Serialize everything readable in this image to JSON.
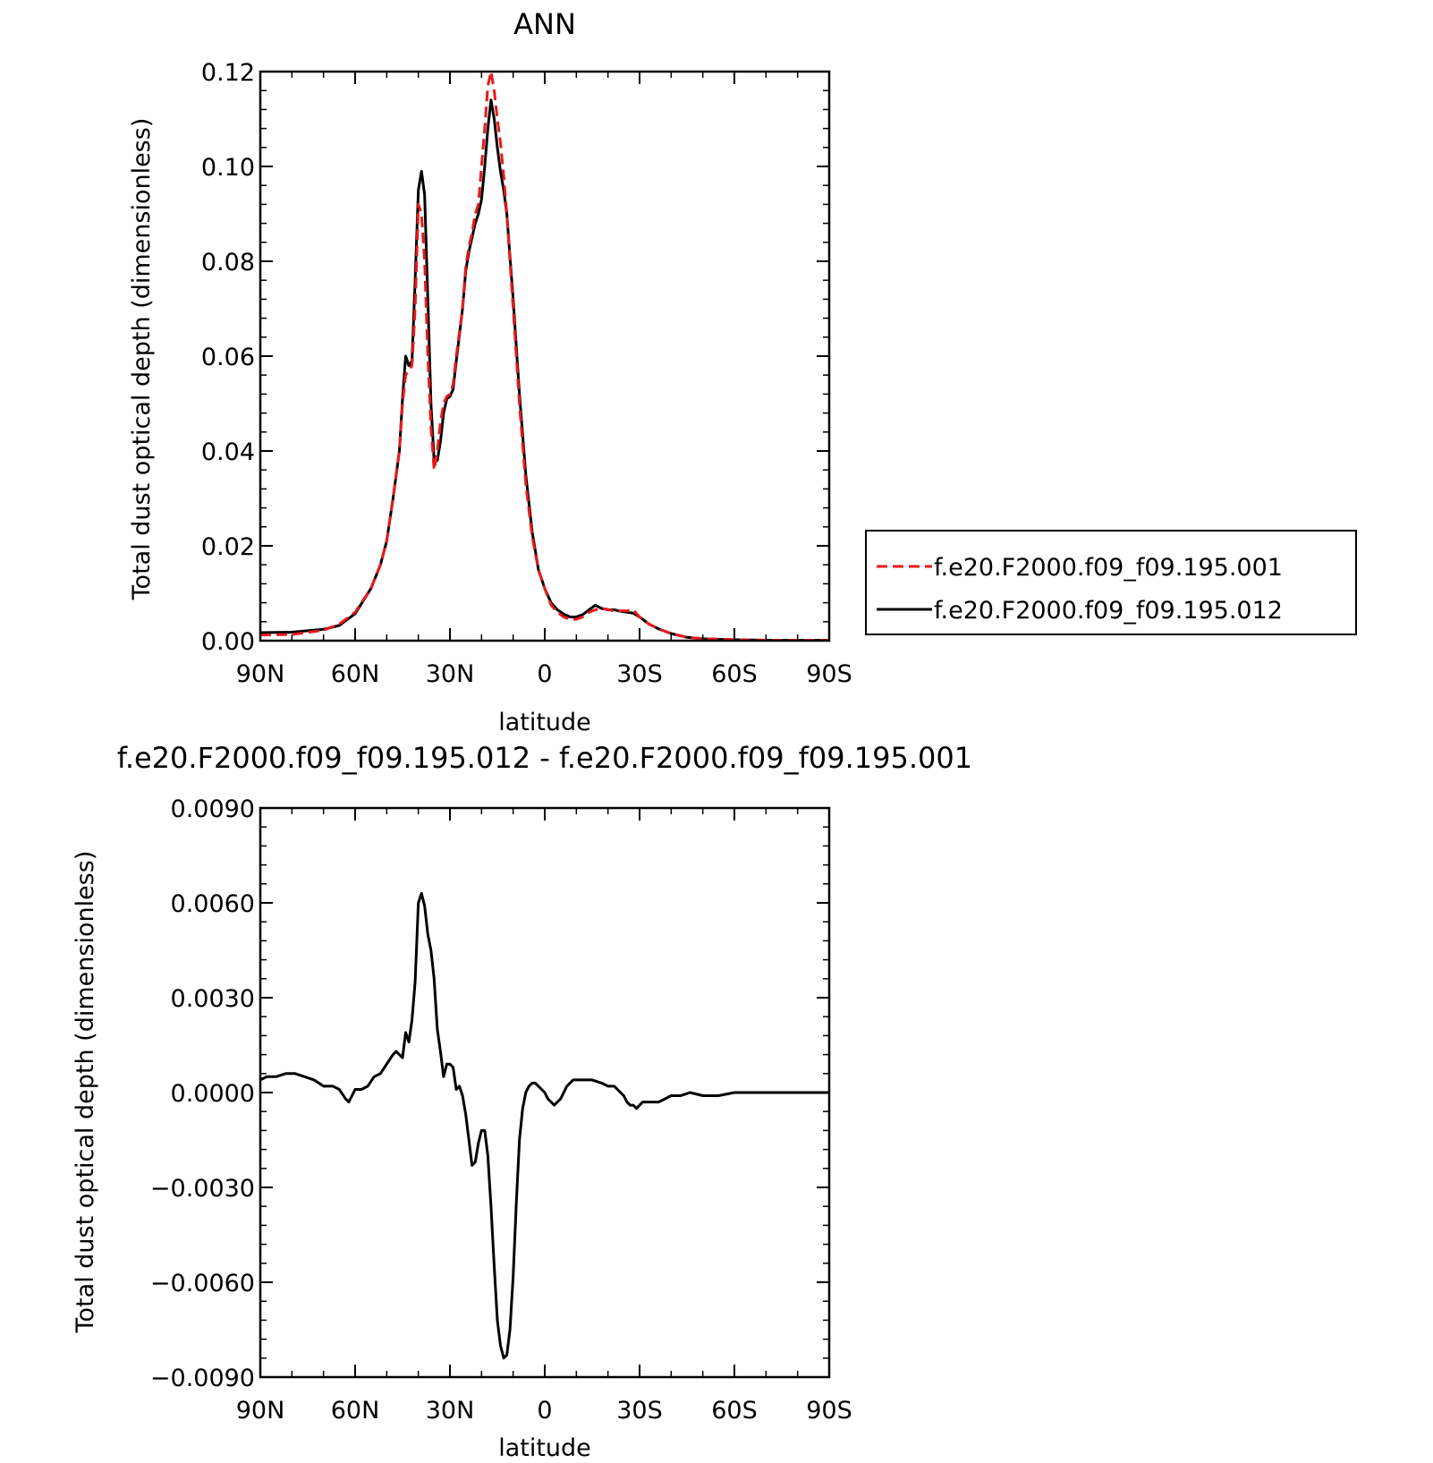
{
  "chart_data": [
    {
      "type": "line",
      "title": "ANN",
      "xlabel": "latitude",
      "ylabel": "Total dust optical depth (dimensionless)",
      "x_axis": {
        "range": [
          90,
          -90
        ],
        "ticks": [
          90,
          60,
          30,
          0,
          -30,
          -60,
          -90
        ],
        "tick_labels": [
          "90N",
          "60N",
          "30N",
          "0",
          "30S",
          "60S",
          "90S"
        ]
      },
      "y_axis": {
        "range": [
          0.0,
          0.12
        ],
        "ticks": [
          0.0,
          0.02,
          0.04,
          0.06,
          0.08,
          0.1,
          0.12
        ],
        "tick_labels": [
          "0.00",
          "0.02",
          "0.04",
          "0.06",
          "0.08",
          "0.10",
          "0.12"
        ]
      },
      "legend": {
        "placement": "right",
        "entries": [
          "f.e20.F2000.f09_f09.195.001",
          "f.e20.F2000.f09_f09.195.012"
        ]
      },
      "series": [
        {
          "name": "f.e20.F2000.f09_f09.195.001",
          "color": "#e8191c",
          "dash": "dashed",
          "points": [
            [
              90,
              0.0012
            ],
            [
              80,
              0.0013
            ],
            [
              70,
              0.0022
            ],
            [
              65,
              0.0035
            ],
            [
              60,
              0.006
            ],
            [
              55,
              0.011
            ],
            [
              52,
              0.016
            ],
            [
              50,
              0.021
            ],
            [
              48,
              0.03
            ],
            [
              46,
              0.04
            ],
            [
              45,
              0.05
            ],
            [
              44,
              0.056
            ],
            [
              43,
              0.057
            ],
            [
              42,
              0.058
            ],
            [
              41,
              0.07
            ],
            [
              40,
              0.092
            ],
            [
              39,
              0.09
            ],
            [
              38,
              0.08
            ],
            [
              37,
              0.06
            ],
            [
              36,
              0.045
            ],
            [
              35,
              0.036
            ],
            [
              34,
              0.04
            ],
            [
              33,
              0.046
            ],
            [
              32,
              0.05
            ],
            [
              31,
              0.0515
            ],
            [
              30,
              0.052
            ],
            [
              29,
              0.054
            ],
            [
              28,
              0.06
            ],
            [
              26,
              0.07
            ],
            [
              25,
              0.079
            ],
            [
              24,
              0.083
            ],
            [
              23,
              0.086
            ],
            [
              22,
              0.09
            ],
            [
              21,
              0.092
            ],
            [
              20,
              0.1
            ],
            [
              19,
              0.108
            ],
            [
              18,
              0.117
            ],
            [
              17,
              0.12
            ],
            [
              16,
              0.116
            ],
            [
              15,
              0.11
            ],
            [
              14,
              0.105
            ],
            [
              13,
              0.098
            ],
            [
              12,
              0.09
            ],
            [
              11,
              0.08
            ],
            [
              10,
              0.07
            ],
            [
              8,
              0.05
            ],
            [
              6,
              0.033
            ],
            [
              4,
              0.022
            ],
            [
              2,
              0.015
            ],
            [
              0,
              0.011
            ],
            [
              -2,
              0.0075
            ],
            [
              -4,
              0.006
            ],
            [
              -6,
              0.005
            ],
            [
              -8,
              0.0045
            ],
            [
              -10,
              0.0045
            ],
            [
              -12,
              0.005
            ],
            [
              -14,
              0.006
            ],
            [
              -16,
              0.0065
            ],
            [
              -18,
              0.0068
            ],
            [
              -20,
              0.0066
            ],
            [
              -22,
              0.0062
            ],
            [
              -24,
              0.0063
            ],
            [
              -26,
              0.0063
            ],
            [
              -28,
              0.0065
            ],
            [
              -30,
              0.005
            ],
            [
              -33,
              0.0035
            ],
            [
              -36,
              0.0025
            ],
            [
              -40,
              0.0015
            ],
            [
              -45,
              0.0007
            ],
            [
              -50,
              0.0004
            ],
            [
              -60,
              0.0002
            ],
            [
              -70,
              0.0001
            ],
            [
              -80,
              0.0001
            ],
            [
              -90,
              0.0001
            ]
          ]
        },
        {
          "name": "f.e20.F2000.f09_f09.195.012",
          "color": "#000000",
          "dash": "solid",
          "points": [
            [
              90,
              0.0017
            ],
            [
              80,
              0.0018
            ],
            [
              70,
              0.0024
            ],
            [
              65,
              0.0032
            ],
            [
              60,
              0.0057
            ],
            [
              55,
              0.011
            ],
            [
              52,
              0.016
            ],
            [
              50,
              0.021
            ],
            [
              48,
              0.03
            ],
            [
              46,
              0.04
            ],
            [
              45,
              0.051
            ],
            [
              44,
              0.06
            ],
            [
              43,
              0.058
            ],
            [
              42,
              0.059
            ],
            [
              41,
              0.076
            ],
            [
              40,
              0.095
            ],
            [
              39,
              0.099
            ],
            [
              38,
              0.094
            ],
            [
              37,
              0.072
            ],
            [
              36,
              0.05
            ],
            [
              35,
              0.038
            ],
            [
              34,
              0.038
            ],
            [
              33,
              0.042
            ],
            [
              32,
              0.048
            ],
            [
              31,
              0.051
            ],
            [
              30,
              0.0515
            ],
            [
              29,
              0.053
            ],
            [
              28,
              0.059
            ],
            [
              26,
              0.07
            ],
            [
              25,
              0.078
            ],
            [
              24,
              0.082
            ],
            [
              23,
              0.085
            ],
            [
              22,
              0.088
            ],
            [
              21,
              0.09
            ],
            [
              20,
              0.093
            ],
            [
              19,
              0.1
            ],
            [
              18,
              0.108
            ],
            [
              17,
              0.114
            ],
            [
              16,
              0.11
            ],
            [
              15,
              0.104
            ],
            [
              14,
              0.099
            ],
            [
              13,
              0.095
            ],
            [
              12,
              0.09
            ],
            [
              11,
              0.081
            ],
            [
              10,
              0.072
            ],
            [
              8,
              0.052
            ],
            [
              6,
              0.035
            ],
            [
              4,
              0.023
            ],
            [
              2,
              0.015
            ],
            [
              0,
              0.011
            ],
            [
              -2,
              0.008
            ],
            [
              -4,
              0.0065
            ],
            [
              -6,
              0.0056
            ],
            [
              -8,
              0.005
            ],
            [
              -10,
              0.005
            ],
            [
              -12,
              0.0055
            ],
            [
              -14,
              0.0065
            ],
            [
              -16,
              0.0075
            ],
            [
              -18,
              0.0068
            ],
            [
              -20,
              0.0065
            ],
            [
              -22,
              0.0065
            ],
            [
              -24,
              0.0062
            ],
            [
              -26,
              0.006
            ],
            [
              -28,
              0.0058
            ],
            [
              -30,
              0.005
            ],
            [
              -33,
              0.0035
            ],
            [
              -36,
              0.0025
            ],
            [
              -40,
              0.0015
            ],
            [
              -45,
              0.0007
            ],
            [
              -50,
              0.0004
            ],
            [
              -60,
              0.0002
            ],
            [
              -70,
              0.0001
            ],
            [
              -80,
              0.0001
            ],
            [
              -90,
              0.0001
            ]
          ]
        }
      ]
    },
    {
      "type": "line",
      "title": "f.e20.F2000.f09_f09.195.012 - f.e20.F2000.f09_f09.195.001",
      "xlabel": "latitude",
      "ylabel": "Total dust optical depth (dimensionless)",
      "x_axis": {
        "range": [
          90,
          -90
        ],
        "ticks": [
          90,
          60,
          30,
          0,
          -30,
          -60,
          -90
        ],
        "tick_labels": [
          "90N",
          "60N",
          "30N",
          "0",
          "30S",
          "60S",
          "90S"
        ]
      },
      "y_axis": {
        "range": [
          -0.009,
          0.009
        ],
        "ticks": [
          -0.009,
          -0.006,
          -0.003,
          0.0,
          0.003,
          0.006,
          0.009
        ],
        "tick_labels": [
          "−0.0090",
          "−0.0060",
          "−0.0030",
          "0.0000",
          "0.0030",
          "0.0060",
          "0.0090"
        ]
      },
      "series": [
        {
          "color": "#000000",
          "dash": "solid",
          "points": [
            [
              90,
              0.0004
            ],
            [
              88,
              0.0005
            ],
            [
              85,
              0.0005
            ],
            [
              82,
              0.0006
            ],
            [
              79,
              0.0006
            ],
            [
              76,
              0.0005
            ],
            [
              73,
              0.0004
            ],
            [
              70,
              0.0002
            ],
            [
              67,
              0.0002
            ],
            [
              65,
              0.0001
            ],
            [
              63,
              -0.0002
            ],
            [
              62,
              -0.0003
            ],
            [
              61,
              -0.0001
            ],
            [
              60,
              0.0001
            ],
            [
              58,
              0.0001
            ],
            [
              56,
              0.0002
            ],
            [
              54,
              0.0005
            ],
            [
              52,
              0.0006
            ],
            [
              50,
              0.0009
            ],
            [
              48,
              0.0012
            ],
            [
              47,
              0.0013
            ],
            [
              46,
              0.0012
            ],
            [
              45,
              0.0011
            ],
            [
              44,
              0.0019
            ],
            [
              43,
              0.0016
            ],
            [
              42,
              0.0023
            ],
            [
              41,
              0.0035
            ],
            [
              40,
              0.006
            ],
            [
              39,
              0.0063
            ],
            [
              38,
              0.0059
            ],
            [
              37,
              0.005
            ],
            [
              36,
              0.0045
            ],
            [
              35,
              0.0036
            ],
            [
              34,
              0.002
            ],
            [
              33,
              0.0013
            ],
            [
              32,
              0.0005
            ],
            [
              31,
              0.0009
            ],
            [
              30,
              0.0009
            ],
            [
              29,
              0.0008
            ],
            [
              28,
              0.0001
            ],
            [
              27,
              0.0002
            ],
            [
              26,
              -0.0001
            ],
            [
              25,
              -0.0007
            ],
            [
              24,
              -0.0015
            ],
            [
              23,
              -0.0023
            ],
            [
              22,
              -0.0022
            ],
            [
              21,
              -0.0016
            ],
            [
              20,
              -0.0012
            ],
            [
              19,
              -0.0012
            ],
            [
              18,
              -0.002
            ],
            [
              17,
              -0.0036
            ],
            [
              16,
              -0.0055
            ],
            [
              15,
              -0.0072
            ],
            [
              14,
              -0.008
            ],
            [
              13,
              -0.0084
            ],
            [
              12,
              -0.0083
            ],
            [
              11,
              -0.0075
            ],
            [
              10,
              -0.0058
            ],
            [
              9,
              -0.0035
            ],
            [
              8,
              -0.0015
            ],
            [
              7,
              -0.0005
            ],
            [
              6,
              0.0
            ],
            [
              5,
              0.0002
            ],
            [
              4,
              0.0003
            ],
            [
              3,
              0.0003
            ],
            [
              2,
              0.0002
            ],
            [
              1,
              0.0001
            ],
            [
              0,
              0.0
            ],
            [
              -1,
              -0.0002
            ],
            [
              -2,
              -0.0003
            ],
            [
              -3,
              -0.0004
            ],
            [
              -4,
              -0.0003
            ],
            [
              -5,
              -0.0002
            ],
            [
              -7,
              0.0002
            ],
            [
              -9,
              0.0004
            ],
            [
              -12,
              0.0004
            ],
            [
              -15,
              0.0004
            ],
            [
              -18,
              0.0003
            ],
            [
              -20,
              0.0002
            ],
            [
              -22,
              0.0002
            ],
            [
              -24,
              0.0
            ],
            [
              -25,
              -0.0001
            ],
            [
              -26,
              -0.0003
            ],
            [
              -27,
              -0.0004
            ],
            [
              -28,
              -0.0004
            ],
            [
              -29,
              -0.0005
            ],
            [
              -30,
              -0.0004
            ],
            [
              -31,
              -0.0003
            ],
            [
              -32,
              -0.0003
            ],
            [
              -34,
              -0.0003
            ],
            [
              -36,
              -0.0003
            ],
            [
              -38,
              -0.0002
            ],
            [
              -40,
              -0.0001
            ],
            [
              -43,
              -0.0001
            ],
            [
              -46,
              0.0
            ],
            [
              -50,
              -0.0001
            ],
            [
              -55,
              -0.0001
            ],
            [
              -60,
              0.0
            ],
            [
              -70,
              0.0
            ],
            [
              -80,
              0.0
            ],
            [
              -90,
              0.0
            ]
          ]
        }
      ]
    }
  ]
}
